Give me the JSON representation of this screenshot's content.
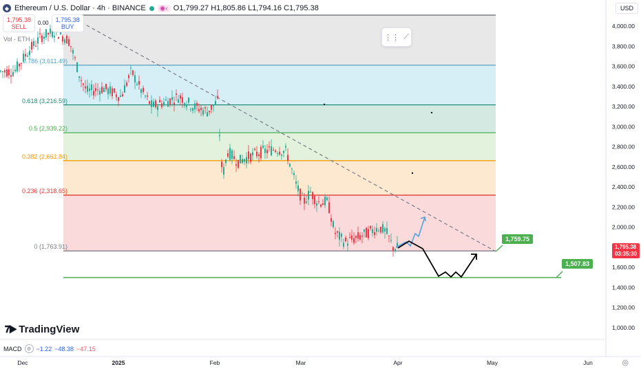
{
  "header": {
    "symbol": "Ethereum / U.S. Dollar · 4h · BINANCE",
    "open": "O1,799.27",
    "high": "H1,805.86",
    "low": "L1,794.16",
    "close": "C1,795.38",
    "icon": "ethereum-icon"
  },
  "trade": {
    "sell_price": "1,795.38",
    "sell_label": "SELL",
    "spread": "0.00",
    "buy_price": "1,795.38",
    "buy_label": "BUY"
  },
  "volume_label": "Vol · ETH",
  "currency": "USD",
  "price_axis": [
    "4,000.00",
    "3,800.00",
    "3,600.00",
    "3,400.00",
    "3,200.00",
    "3,000.00",
    "2,800.00",
    "2,600.00",
    "2,400.00",
    "2,200.00",
    "2,000.00",
    "1,800.00",
    "1,600.00",
    "1,400.00",
    "1,200.00",
    "1,000.00"
  ],
  "time_axis": [
    "Dec",
    "2025",
    "Feb",
    "Mar",
    "Apr",
    "May",
    "Jun"
  ],
  "fib_levels": [
    {
      "label": "0.786 (3,611.49)",
      "price": 3611.49,
      "color": "#4fa3c7"
    },
    {
      "label": "0.618 (3,216.59)",
      "price": 3216.59,
      "color": "#1f8a70"
    },
    {
      "label": "0.5 (2,939.22)",
      "price": 2939.22,
      "color": "#4caf50"
    },
    {
      "label": "0.382 (2,661.84)",
      "price": 2661.84,
      "color": "#ff9800"
    },
    {
      "label": "0.236 (2,318.65)",
      "price": 2318.65,
      "color": "#e53935"
    },
    {
      "label": "0 (1,763.91)",
      "price": 1763.91,
      "color": "#787b86"
    }
  ],
  "price_boxes": {
    "target1": "1,759.75",
    "target2": "1,507.83",
    "current_price": "1,795.38",
    "countdown": "03:35:30"
  },
  "branding": "TradingView",
  "macd": {
    "label": "MACD",
    "v1": "−1.22",
    "v2": "−48.38",
    "v3": "−47.15"
  },
  "colors": {
    "up": "#22ab94",
    "down": "#f23645",
    "accent": "#2962ff",
    "target": "#4caf50"
  },
  "icons": [
    "drawing-tool-icon",
    "settings-icon",
    "eye-icon",
    "market-status-icon"
  ],
  "chart_data": {
    "type": "line",
    "symbol": "ETHUSD",
    "timeframe": "4h",
    "x": [
      "Dec",
      "Dec",
      "2025",
      "2025",
      "Feb",
      "Feb",
      "Feb",
      "Mar",
      "Mar",
      "Mar",
      "Apr"
    ],
    "ylim": [
      1000,
      4100
    ],
    "close_path": [
      3700,
      3650,
      3500,
      3350,
      3300,
      3200,
      2700,
      2650,
      2350,
      2100,
      1795
    ],
    "trendline_target": 1759.75,
    "support": 1507.83
  }
}
